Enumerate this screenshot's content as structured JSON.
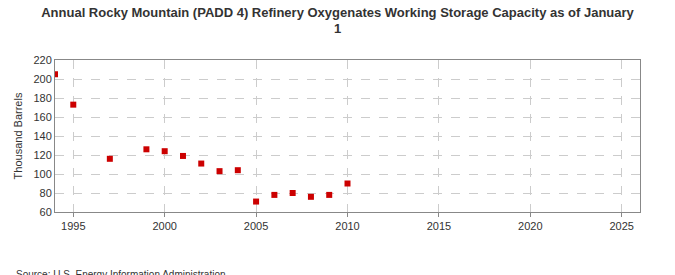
{
  "chart_data": {
    "type": "scatter",
    "title": "Annual Rocky Mountain (PADD 4) Refinery Oxygenates Working Storage Capacity as of January 1",
    "y_label": "Thousand Barrels",
    "source": "Source: U.S. Energy Information Administration",
    "x": [
      1994,
      1995,
      1997,
      1999,
      2000,
      2001,
      2002,
      2003,
      2004,
      2005,
      2006,
      2007,
      2008,
      2009,
      2010
    ],
    "values": [
      205,
      173,
      116,
      126,
      124,
      119,
      111,
      103,
      104,
      71,
      78,
      80,
      76,
      78,
      90
    ],
    "color": "#cc0000",
    "marker": "square",
    "xlim": [
      1994,
      2026
    ],
    "xticks": [
      1995,
      2000,
      2005,
      2010,
      2015,
      2020,
      2025
    ],
    "ylim": [
      60,
      220
    ],
    "yticks": [
      60,
      80,
      100,
      120,
      140,
      160,
      180,
      200,
      220
    ],
    "grid": true
  }
}
